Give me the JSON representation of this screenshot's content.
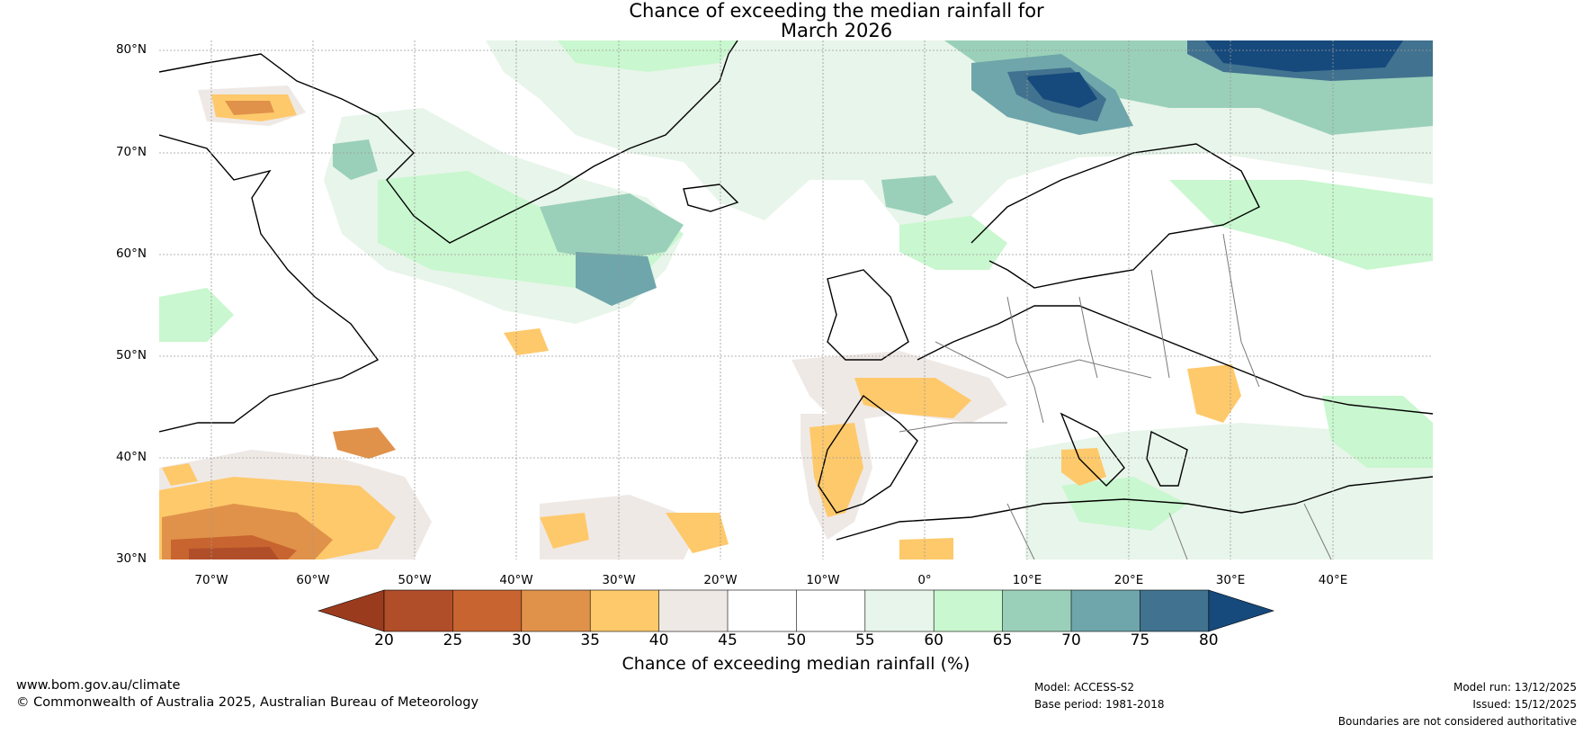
{
  "title_line1": "Chance of exceeding the median rainfall for",
  "title_line2": "March 2026",
  "map": {
    "lat_ticks": [
      "80°N",
      "70°N",
      "60°N",
      "50°N",
      "40°N",
      "30°N"
    ],
    "lon_ticks": [
      "70°W",
      "60°W",
      "50°W",
      "40°W",
      "30°W",
      "20°W",
      "10°W",
      "0°",
      "10°E",
      "20°E",
      "30°E",
      "40°E"
    ],
    "colors": {
      "ocean": "#ffffff",
      "coast": "#000000",
      "border": "#7a7a7a",
      "grid": "#9a9a9a"
    }
  },
  "colorbar": {
    "ticks": [
      "20",
      "25",
      "30",
      "35",
      "40",
      "45",
      "50",
      "55",
      "60",
      "65",
      "70",
      "75",
      "80"
    ],
    "colors": [
      "#9b3b1e",
      "#b14e2a",
      "#c8642f",
      "#e0924a",
      "#fec96b",
      "#efe9e6",
      "#ffffff",
      "#ffffff",
      "#e8f5ea",
      "#c9f7cf",
      "#9ad0b9",
      "#6ea6ab",
      "#41728f",
      "#16497c"
    ],
    "label": "Chance of exceeding median rainfall (%)"
  },
  "footer": {
    "website": "www.bom.gov.au/climate",
    "copyright": "© Commonwealth of Australia 2025, Australian Bureau of Meteorology",
    "model": "Model: ACCESS-S2",
    "base_period": "Base period: 1981-2018",
    "model_run": "Model run: 13/12/2025",
    "issued": "Issued: 15/12/2025",
    "disclaimer": "Boundaries are not considered authoritative"
  }
}
